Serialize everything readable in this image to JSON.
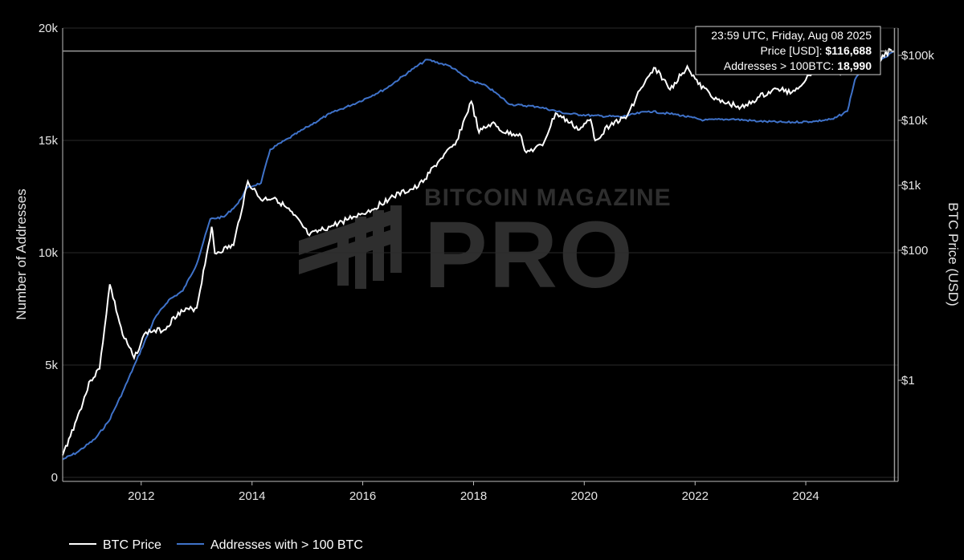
{
  "chart_data": {
    "type": "line",
    "title": "",
    "watermark": {
      "line1": "BITCOIN MAGAZINE",
      "line2": "PRO"
    },
    "x_ticks": [
      "2012",
      "2014",
      "2016",
      "2018",
      "2020",
      "2022",
      "2024"
    ],
    "xlim": [
      "2010-08-01",
      "2025-09-01"
    ],
    "y_left": {
      "label": "Number of Addresses",
      "ticks": [
        "0",
        "5k",
        "10k",
        "15k",
        "20k"
      ],
      "range": [
        0,
        20000
      ]
    },
    "y_right": {
      "label": "BTC Price (USD)",
      "scale": "log",
      "ticks": [
        "$1",
        "$100",
        "$1k",
        "$10k",
        "$100k"
      ],
      "tick_values": [
        1,
        100,
        1000,
        10000,
        100000
      ]
    },
    "legend_placement": "bottom-left",
    "series": [
      {
        "name": "BTC Price",
        "axis": "right",
        "color": "#ffffff",
        "points": [
          [
            "2010-08-01",
            0.07
          ],
          [
            "2010-11-01",
            0.25
          ],
          [
            "2011-02-01",
            1.0
          ],
          [
            "2011-04-01",
            1.5
          ],
          [
            "2011-06-08",
            30
          ],
          [
            "2011-09-01",
            5
          ],
          [
            "2011-11-15",
            2.2
          ],
          [
            "2012-02-01",
            5.5
          ],
          [
            "2012-06-01",
            6
          ],
          [
            "2012-09-01",
            11
          ],
          [
            "2013-01-01",
            13
          ],
          [
            "2013-04-10",
            230
          ],
          [
            "2013-05-01",
            90
          ],
          [
            "2013-09-01",
            120
          ],
          [
            "2013-12-04",
            1150
          ],
          [
            "2014-03-01",
            600
          ],
          [
            "2014-06-01",
            650
          ],
          [
            "2014-10-01",
            350
          ],
          [
            "2015-01-14",
            170
          ],
          [
            "2015-06-01",
            230
          ],
          [
            "2015-11-01",
            330
          ],
          [
            "2016-03-01",
            420
          ],
          [
            "2016-07-01",
            650
          ],
          [
            "2017-01-01",
            950
          ],
          [
            "2017-06-01",
            2600
          ],
          [
            "2017-09-01",
            4200
          ],
          [
            "2017-12-17",
            19500
          ],
          [
            "2018-02-06",
            6500
          ],
          [
            "2018-05-01",
            9000
          ],
          [
            "2018-08-01",
            6300
          ],
          [
            "2018-11-01",
            6200
          ],
          [
            "2018-12-15",
            3200
          ],
          [
            "2019-04-01",
            4100
          ],
          [
            "2019-06-26",
            12900
          ],
          [
            "2019-12-01",
            7200
          ],
          [
            "2020-02-12",
            10300
          ],
          [
            "2020-03-13",
            4900
          ],
          [
            "2020-07-01",
            9200
          ],
          [
            "2020-10-01",
            10700
          ],
          [
            "2021-01-01",
            29000
          ],
          [
            "2021-04-14",
            64000
          ],
          [
            "2021-07-20",
            29800
          ],
          [
            "2021-11-10",
            68000
          ],
          [
            "2022-01-22",
            36000
          ],
          [
            "2022-06-18",
            19000
          ],
          [
            "2022-11-21",
            15800
          ],
          [
            "2023-03-01",
            23000
          ],
          [
            "2023-07-01",
            30500
          ],
          [
            "2023-10-01",
            27000
          ],
          [
            "2024-01-01",
            42000
          ],
          [
            "2024-03-14",
            73000
          ],
          [
            "2024-09-06",
            54000
          ],
          [
            "2024-12-17",
            106000
          ],
          [
            "2025-04-08",
            77000
          ],
          [
            "2025-07-14",
            122000
          ],
          [
            "2025-08-08",
            116688
          ]
        ]
      },
      {
        "name": "Addresses with > 100 BTC",
        "axis": "left",
        "color": "#3f72c9",
        "points": [
          [
            "2010-08-01",
            800
          ],
          [
            "2010-11-01",
            1100
          ],
          [
            "2011-03-01",
            1700
          ],
          [
            "2011-06-01",
            2500
          ],
          [
            "2011-09-01",
            3800
          ],
          [
            "2011-12-01",
            5200
          ],
          [
            "2012-04-01",
            7100
          ],
          [
            "2012-07-01",
            7900
          ],
          [
            "2012-10-01",
            8300
          ],
          [
            "2013-01-01",
            9500
          ],
          [
            "2013-04-01",
            11500
          ],
          [
            "2013-07-01",
            11600
          ],
          [
            "2013-10-01",
            12200
          ],
          [
            "2013-12-01",
            12900
          ],
          [
            "2014-03-01",
            13100
          ],
          [
            "2014-05-01",
            14600
          ],
          [
            "2014-09-01",
            15100
          ],
          [
            "2015-01-01",
            15600
          ],
          [
            "2015-06-01",
            16200
          ],
          [
            "2015-12-01",
            16700
          ],
          [
            "2016-06-01",
            17300
          ],
          [
            "2016-12-01",
            18200
          ],
          [
            "2017-03-01",
            18600
          ],
          [
            "2017-08-01",
            18300
          ],
          [
            "2017-12-01",
            17700
          ],
          [
            "2018-04-01",
            17400
          ],
          [
            "2018-09-01",
            16600
          ],
          [
            "2019-03-01",
            16500
          ],
          [
            "2019-09-01",
            16200
          ],
          [
            "2020-03-01",
            16100
          ],
          [
            "2020-09-01",
            16050
          ],
          [
            "2021-03-01",
            16300
          ],
          [
            "2021-09-01",
            16150
          ],
          [
            "2022-03-01",
            15900
          ],
          [
            "2022-09-01",
            15950
          ],
          [
            "2023-03-01",
            15850
          ],
          [
            "2023-09-01",
            15800
          ],
          [
            "2024-03-01",
            15850
          ],
          [
            "2024-07-01",
            15950
          ],
          [
            "2024-10-01",
            16300
          ],
          [
            "2024-11-20",
            17700
          ],
          [
            "2025-01-01",
            18200
          ],
          [
            "2025-05-01",
            18500
          ],
          [
            "2025-08-08",
            18990
          ]
        ]
      }
    ],
    "hover": {
      "date": "2025-08-08",
      "line1": "23:59 UTC, Friday, Aug 08 2025",
      "price_label": "Price [USD]: ",
      "price_value": "$116,688",
      "addr_label": "Addresses > 100BTC: ",
      "addr_value": "18,990"
    }
  }
}
